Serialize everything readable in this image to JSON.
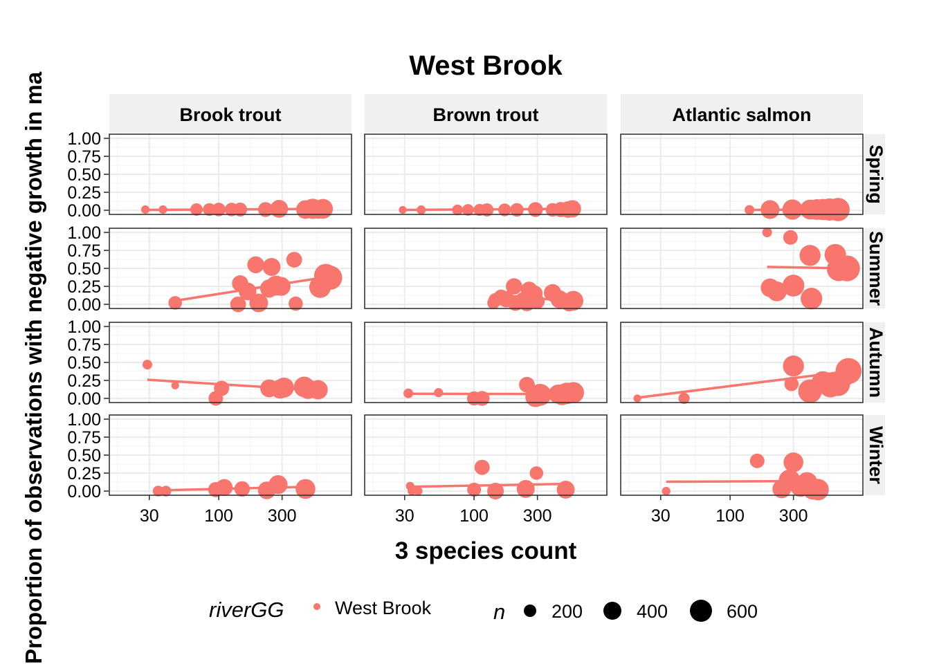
{
  "chart_data": {
    "type": "scatter",
    "title": "West Brook",
    "xlabel": "3 species count",
    "ylabel": "Proportion of observations with negative growth in ma",
    "x_scale": "log",
    "x_ticks": [
      30,
      100,
      300
    ],
    "x_tick_labels": [
      "30",
      "100",
      "300"
    ],
    "xlim": [
      15,
      1000
    ],
    "ylim": [
      0,
      1
    ],
    "y_ticks": [
      0,
      0.25,
      0.5,
      0.75,
      1
    ],
    "y_tick_labels": [
      "0.00",
      "0.25",
      "0.50",
      "0.75",
      "1.00"
    ],
    "grid": true,
    "point_color": "#F8766D",
    "strip_bg": "#F0F0F0",
    "columns": [
      "Brook trout",
      "Brown trout",
      "Atlantic salmon"
    ],
    "rows": [
      "Spring",
      "Summer",
      "Autumn",
      "Winter"
    ],
    "legend": {
      "position": "bottom",
      "color_title": "riverGG",
      "color_entries": [
        "West Brook"
      ],
      "size_title": "n",
      "size_entries": [
        200,
        400,
        600
      ]
    },
    "panels": [
      {
        "row": "Spring",
        "col": "Brook trout",
        "fit": {
          "x": [
            28,
            620
          ],
          "y": [
            0.005,
            0.02
          ]
        },
        "points": [
          {
            "x": 28,
            "y": 0.01,
            "n": 40
          },
          {
            "x": 38,
            "y": 0.01,
            "n": 40
          },
          {
            "x": 68,
            "y": 0.01,
            "n": 120
          },
          {
            "x": 85,
            "y": 0.01,
            "n": 130
          },
          {
            "x": 100,
            "y": 0.01,
            "n": 150
          },
          {
            "x": 125,
            "y": 0.01,
            "n": 150
          },
          {
            "x": 145,
            "y": 0.01,
            "n": 160
          },
          {
            "x": 225,
            "y": 0.01,
            "n": 190
          },
          {
            "x": 285,
            "y": 0.02,
            "n": 300
          },
          {
            "x": 450,
            "y": 0.01,
            "n": 330
          },
          {
            "x": 510,
            "y": 0.02,
            "n": 400
          },
          {
            "x": 560,
            "y": 0.01,
            "n": 330
          },
          {
            "x": 610,
            "y": 0.02,
            "n": 380
          }
        ]
      },
      {
        "row": "Spring",
        "col": "Brown trout",
        "fit": {
          "x": [
            29,
            550
          ],
          "y": [
            0.005,
            0.02
          ]
        },
        "points": [
          {
            "x": 29,
            "y": 0.005,
            "n": 30
          },
          {
            "x": 40,
            "y": 0.005,
            "n": 50
          },
          {
            "x": 75,
            "y": 0.005,
            "n": 80
          },
          {
            "x": 90,
            "y": 0.005,
            "n": 100
          },
          {
            "x": 110,
            "y": 0.005,
            "n": 110
          },
          {
            "x": 125,
            "y": 0.005,
            "n": 140
          },
          {
            "x": 170,
            "y": 0.005,
            "n": 130
          },
          {
            "x": 210,
            "y": 0.005,
            "n": 150
          },
          {
            "x": 290,
            "y": 0.01,
            "n": 190
          },
          {
            "x": 390,
            "y": 0.005,
            "n": 150
          },
          {
            "x": 450,
            "y": 0.01,
            "n": 200
          },
          {
            "x": 510,
            "y": 0.01,
            "n": 250
          },
          {
            "x": 550,
            "y": 0.02,
            "n": 280
          }
        ]
      },
      {
        "row": "Spring",
        "col": "Atlantic salmon",
        "fit": {
          "x": [
            140,
            700
          ],
          "y": [
            0.005,
            0.01
          ]
        },
        "points": [
          {
            "x": 140,
            "y": 0.005,
            "n": 60
          },
          {
            "x": 200,
            "y": 0.01,
            "n": 340
          },
          {
            "x": 295,
            "y": 0.01,
            "n": 400
          },
          {
            "x": 400,
            "y": 0.01,
            "n": 380
          },
          {
            "x": 450,
            "y": 0.01,
            "n": 420
          },
          {
            "x": 500,
            "y": 0.01,
            "n": 450
          },
          {
            "x": 560,
            "y": 0.01,
            "n": 500
          },
          {
            "x": 650,
            "y": 0.01,
            "n": 560
          }
        ]
      },
      {
        "row": "Summer",
        "col": "Brook trout",
        "fit": {
          "x": [
            47,
            700
          ],
          "y": [
            0.05,
            0.39
          ]
        },
        "points": [
          {
            "x": 47,
            "y": 0.02,
            "n": 150
          },
          {
            "x": 140,
            "y": 0.0,
            "n": 220
          },
          {
            "x": 145,
            "y": 0.29,
            "n": 240
          },
          {
            "x": 165,
            "y": 0.18,
            "n": 290
          },
          {
            "x": 190,
            "y": 0.55,
            "n": 260
          },
          {
            "x": 200,
            "y": 0.02,
            "n": 330
          },
          {
            "x": 240,
            "y": 0.22,
            "n": 310
          },
          {
            "x": 250,
            "y": 0.52,
            "n": 300
          },
          {
            "x": 270,
            "y": 0.26,
            "n": 390
          },
          {
            "x": 295,
            "y": 0.25,
            "n": 340
          },
          {
            "x": 370,
            "y": 0.62,
            "n": 220
          },
          {
            "x": 380,
            "y": 0.01,
            "n": 170
          },
          {
            "x": 580,
            "y": 0.24,
            "n": 470
          },
          {
            "x": 640,
            "y": 0.4,
            "n": 560
          },
          {
            "x": 690,
            "y": 0.37,
            "n": 600
          }
        ]
      },
      {
        "row": "Summer",
        "col": "Brown trout",
        "fit": {
          "x": [
            140,
            560
          ],
          "y": [
            0.1,
            0.06
          ]
        },
        "points": [
          {
            "x": 140,
            "y": 0.02,
            "n": 120
          },
          {
            "x": 145,
            "y": 0.06,
            "n": 160
          },
          {
            "x": 160,
            "y": 0.1,
            "n": 200
          },
          {
            "x": 175,
            "y": 0.07,
            "n": 240
          },
          {
            "x": 200,
            "y": 0.25,
            "n": 240
          },
          {
            "x": 205,
            "y": 0.02,
            "n": 220
          },
          {
            "x": 235,
            "y": 0.05,
            "n": 260
          },
          {
            "x": 250,
            "y": 0.02,
            "n": 250
          },
          {
            "x": 260,
            "y": 0.2,
            "n": 250
          },
          {
            "x": 285,
            "y": 0.15,
            "n": 240
          },
          {
            "x": 300,
            "y": 0.04,
            "n": 180
          },
          {
            "x": 390,
            "y": 0.16,
            "n": 280
          },
          {
            "x": 440,
            "y": 0.07,
            "n": 300
          },
          {
            "x": 520,
            "y": 0.02,
            "n": 260
          },
          {
            "x": 560,
            "y": 0.05,
            "n": 380
          }
        ]
      },
      {
        "row": "Summer",
        "col": "Atlantic salmon",
        "fit": {
          "x": [
            190,
            760
          ],
          "y": [
            0.52,
            0.5
          ]
        },
        "points": [
          {
            "x": 190,
            "y": 1.0,
            "n": 60
          },
          {
            "x": 200,
            "y": 0.23,
            "n": 330
          },
          {
            "x": 225,
            "y": 0.18,
            "n": 380
          },
          {
            "x": 285,
            "y": 0.93,
            "n": 180
          },
          {
            "x": 300,
            "y": 0.26,
            "n": 480
          },
          {
            "x": 400,
            "y": 0.68,
            "n": 440
          },
          {
            "x": 410,
            "y": 0.08,
            "n": 470
          },
          {
            "x": 620,
            "y": 0.69,
            "n": 460
          },
          {
            "x": 660,
            "y": 0.49,
            "n": 600
          },
          {
            "x": 760,
            "y": 0.5,
            "n": 700
          }
        ]
      },
      {
        "row": "Autumn",
        "col": "Brook trout",
        "fit": {
          "x": [
            29,
            580
          ],
          "y": [
            0.26,
            0.11
          ]
        },
        "points": [
          {
            "x": 29,
            "y": 0.47,
            "n": 60
          },
          {
            "x": 47,
            "y": 0.18,
            "n": 30
          },
          {
            "x": 95,
            "y": 0.0,
            "n": 180
          },
          {
            "x": 105,
            "y": 0.14,
            "n": 200
          },
          {
            "x": 240,
            "y": 0.14,
            "n": 300
          },
          {
            "x": 290,
            "y": 0.13,
            "n": 350
          },
          {
            "x": 310,
            "y": 0.15,
            "n": 390
          },
          {
            "x": 440,
            "y": 0.16,
            "n": 420
          },
          {
            "x": 470,
            "y": 0.13,
            "n": 380
          },
          {
            "x": 560,
            "y": 0.12,
            "n": 360
          }
        ]
      },
      {
        "row": "Autumn",
        "col": "Brown trout",
        "fit": {
          "x": [
            32,
            560
          ],
          "y": [
            0.065,
            0.06
          ]
        },
        "points": [
          {
            "x": 32,
            "y": 0.07,
            "n": 60
          },
          {
            "x": 54,
            "y": 0.08,
            "n": 50
          },
          {
            "x": 100,
            "y": 0.0,
            "n": 170
          },
          {
            "x": 115,
            "y": 0.0,
            "n": 190
          },
          {
            "x": 250,
            "y": 0.19,
            "n": 220
          },
          {
            "x": 290,
            "y": 0.02,
            "n": 400
          },
          {
            "x": 315,
            "y": 0.05,
            "n": 480
          },
          {
            "x": 430,
            "y": 0.06,
            "n": 350
          },
          {
            "x": 460,
            "y": 0.05,
            "n": 420
          },
          {
            "x": 500,
            "y": 0.07,
            "n": 460
          },
          {
            "x": 560,
            "y": 0.08,
            "n": 450
          }
        ]
      },
      {
        "row": "Autumn",
        "col": "Atlantic salmon",
        "fit": {
          "x": [
            20,
            800
          ],
          "y": [
            0.01,
            0.38
          ]
        },
        "points": [
          {
            "x": 20,
            "y": 0.0,
            "n": 30
          },
          {
            "x": 45,
            "y": 0.0,
            "n": 90
          },
          {
            "x": 290,
            "y": 0.2,
            "n": 170
          },
          {
            "x": 300,
            "y": 0.45,
            "n": 440
          },
          {
            "x": 400,
            "y": 0.1,
            "n": 580
          },
          {
            "x": 500,
            "y": 0.22,
            "n": 520
          },
          {
            "x": 570,
            "y": 0.17,
            "n": 520
          },
          {
            "x": 650,
            "y": 0.2,
            "n": 600
          },
          {
            "x": 720,
            "y": 0.3,
            "n": 400
          },
          {
            "x": 780,
            "y": 0.38,
            "n": 720
          }
        ]
      },
      {
        "row": "Winter",
        "col": "Brook trout",
        "fit": {
          "x": [
            35,
            480
          ],
          "y": [
            0.01,
            0.06
          ]
        },
        "points": [
          {
            "x": 35,
            "y": 0.0,
            "n": 80
          },
          {
            "x": 40,
            "y": 0.0,
            "n": 80
          },
          {
            "x": 95,
            "y": 0.02,
            "n": 200
          },
          {
            "x": 110,
            "y": 0.05,
            "n": 260
          },
          {
            "x": 150,
            "y": 0.03,
            "n": 210
          },
          {
            "x": 230,
            "y": 0.01,
            "n": 290
          },
          {
            "x": 280,
            "y": 0.09,
            "n": 340
          },
          {
            "x": 450,
            "y": 0.03,
            "n": 380
          }
        ]
      },
      {
        "row": "Winter",
        "col": "Brown trout",
        "fit": {
          "x": [
            33,
            480
          ],
          "y": [
            0.06,
            0.1
          ]
        },
        "points": [
          {
            "x": 33,
            "y": 0.07,
            "n": 40
          },
          {
            "x": 34,
            "y": 0.0,
            "n": 40
          },
          {
            "x": 38,
            "y": 0.0,
            "n": 40
          },
          {
            "x": 100,
            "y": 0.02,
            "n": 160
          },
          {
            "x": 115,
            "y": 0.33,
            "n": 200
          },
          {
            "x": 145,
            "y": 0.0,
            "n": 250
          },
          {
            "x": 245,
            "y": 0.03,
            "n": 300
          },
          {
            "x": 295,
            "y": 0.25,
            "n": 150
          },
          {
            "x": 490,
            "y": 0.02,
            "n": 300
          }
        ]
      },
      {
        "row": "Winter",
        "col": "Atlantic salmon",
        "fit": {
          "x": [
            33,
            470
          ],
          "y": [
            0.13,
            0.14
          ]
        },
        "points": [
          {
            "x": 33,
            "y": 0.0,
            "n": 40
          },
          {
            "x": 160,
            "y": 0.42,
            "n": 180
          },
          {
            "x": 245,
            "y": 0.03,
            "n": 330
          },
          {
            "x": 280,
            "y": 0.15,
            "n": 460
          },
          {
            "x": 300,
            "y": 0.4,
            "n": 380
          },
          {
            "x": 340,
            "y": 0.06,
            "n": 400
          },
          {
            "x": 380,
            "y": 0.12,
            "n": 420
          },
          {
            "x": 420,
            "y": 0.03,
            "n": 450
          },
          {
            "x": 460,
            "y": 0.02,
            "n": 460
          }
        ]
      }
    ]
  }
}
